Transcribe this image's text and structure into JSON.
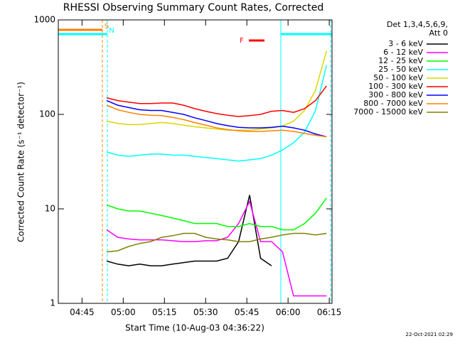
{
  "chart_data": {
    "type": "line",
    "title": "RHESSI Observing Summary Count Rates, Corrected",
    "x_label": "Start Time (10-Aug-03 04:36:22)",
    "y_label": "Corrected Count Rate (s⁻¹ detector⁻¹)",
    "legend_title": [
      "Det 1,3,4,5,6,9,",
      "Att 0"
    ],
    "timestamp": "22-Oct-2021 02:29",
    "log_y": true,
    "xlim": [
      "04:36:22",
      "06:16:00"
    ],
    "xticks": [
      "04:45",
      "05:00",
      "05:15",
      "05:30",
      "05:45",
      "06:00",
      "06:15"
    ],
    "ylim": [
      1,
      1000
    ],
    "yticks": [
      1,
      10,
      100,
      1000
    ],
    "x": [
      "04:54",
      "04:58",
      "05:02",
      "05:06",
      "05:10",
      "05:14",
      "05:18",
      "05:22",
      "05:26",
      "05:30",
      "05:34",
      "05:38",
      "05:42",
      "05:46",
      "05:50",
      "05:54",
      "05:58",
      "06:02",
      "06:06",
      "06:10",
      "06:14"
    ],
    "series": [
      {
        "name": "3 - 6 keV",
        "color": "#000000",
        "values": [
          2.8,
          2.6,
          2.5,
          2.6,
          2.5,
          2.5,
          2.6,
          2.7,
          2.8,
          2.8,
          2.8,
          3,
          4.5,
          14,
          3,
          2.5,
          null,
          null,
          null,
          null,
          null
        ]
      },
      {
        "name": "6 - 12 keV",
        "color": "#ff00ff",
        "values": [
          6,
          5,
          4.8,
          4.7,
          4.7,
          4.7,
          4.6,
          4.5,
          4.5,
          4.6,
          4.6,
          5,
          7,
          12,
          4.5,
          4.5,
          3.5,
          1.2,
          1.2,
          1.2,
          1.2
        ]
      },
      {
        "name": "12 - 25 keV",
        "color": "#00ff00",
        "values": [
          11,
          10,
          9.5,
          9.5,
          9,
          8.5,
          8,
          7.5,
          7,
          7,
          7,
          6.5,
          6.5,
          7,
          6.5,
          6.5,
          6,
          6,
          7,
          9,
          13
        ]
      },
      {
        "name": "25 - 50 keV",
        "color": "#00ffff",
        "values": [
          40,
          37,
          36,
          37,
          38,
          38,
          37,
          37,
          36,
          35,
          34,
          33,
          32,
          33,
          34,
          37,
          42,
          50,
          65,
          110,
          330
        ]
      },
      {
        "name": "50 - 100 keV",
        "color": "#d8d800",
        "values": [
          85,
          80,
          78,
          78,
          80,
          82,
          80,
          77,
          74,
          72,
          70,
          68,
          68,
          68,
          70,
          72,
          75,
          85,
          110,
          180,
          470
        ]
      },
      {
        "name": "100 - 300 keV",
        "color": "#ff0000",
        "values": [
          150,
          140,
          135,
          130,
          130,
          132,
          132,
          125,
          115,
          108,
          102,
          98,
          95,
          97,
          100,
          108,
          110,
          105,
          115,
          140,
          200
        ]
      },
      {
        "name": "300 - 800 keV",
        "color": "#0000ff",
        "values": [
          140,
          125,
          118,
          112,
          110,
          110,
          105,
          100,
          92,
          86,
          80,
          76,
          73,
          72,
          72,
          73,
          75,
          72,
          68,
          62,
          58
        ]
      },
      {
        "name": "800 - 7000 keV",
        "color": "#ff8000",
        "values": [
          125,
          112,
          105,
          100,
          98,
          97,
          93,
          88,
          82,
          77,
          72,
          69,
          67,
          66,
          66,
          67,
          68,
          66,
          63,
          60,
          58
        ]
      },
      {
        "name": "7000 - 15000 keV",
        "color": "#808000",
        "values": [
          3.5,
          3.6,
          4,
          4.3,
          4.5,
          5,
          5.2,
          5.5,
          5.5,
          5,
          4.8,
          4.7,
          4.5,
          4.5,
          4.8,
          5,
          5.3,
          5.5,
          5.5,
          5.3,
          5.5
        ]
      }
    ],
    "flags": [
      {
        "label": "S",
        "color": "#ff8000",
        "periods": [
          [
            "04:36:22",
            "04:52:25"
          ]
        ]
      },
      {
        "label": "N",
        "color": "#00ffff",
        "periods": [
          [
            "04:36:22",
            "04:54:13"
          ],
          [
            "05:57:22",
            "06:16:00"
          ]
        ]
      },
      {
        "label": "F",
        "color": "#ff0000",
        "periods": [
          [
            "05:45:44",
            "05:51:25"
          ]
        ]
      }
    ],
    "markers": [
      {
        "time": "04:52:25",
        "color": "#ff8000",
        "dashed": true
      },
      {
        "time": "04:54:13",
        "color": "#00ffff",
        "dashed": true
      },
      {
        "time": "05:57:22",
        "color": "#00ffff",
        "dashed": false
      },
      {
        "time": "06:15:30",
        "color": "#00ffff",
        "dashed": true
      },
      {
        "time": "06:16:00",
        "color": "#ff8000",
        "dashed": true
      }
    ]
  }
}
